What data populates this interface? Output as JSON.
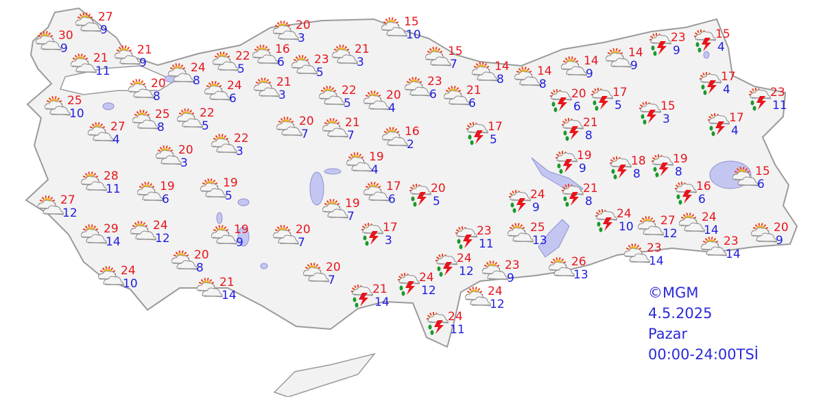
{
  "map": {
    "colors": {
      "land": "#f2f2f2",
      "border": "#9a9a9a",
      "water": "#c4c6f2",
      "max_temp": "#e8141b",
      "min_temp": "#1c1ce0",
      "info_text": "#2a2ad8"
    },
    "icon_types": {
      "s": "partly-cloudy-icon",
      "t": "thunderstorm-rain-icon"
    }
  },
  "info": {
    "credit": "©MGM",
    "date": "4.5.2025",
    "day": "Pazar",
    "period": "00:00-24:00TSİ"
  },
  "stations": [
    {
      "type": "s",
      "max": "30",
      "min": "9"
    },
    {
      "type": "s",
      "max": "27",
      "min": "9"
    },
    {
      "type": "s",
      "max": "21",
      "min": "11"
    },
    {
      "type": "s",
      "max": "21",
      "min": "9"
    },
    {
      "type": "s",
      "max": "20",
      "min": "8"
    },
    {
      "type": "s",
      "max": "24",
      "min": "8"
    },
    {
      "type": "s",
      "max": "25",
      "min": "10"
    },
    {
      "type": "s",
      "max": "27",
      "min": "4"
    },
    {
      "type": "s",
      "max": "25",
      "min": "8"
    },
    {
      "type": "s",
      "max": "22",
      "min": "5"
    },
    {
      "type": "s",
      "max": "22",
      "min": "5"
    },
    {
      "type": "s",
      "max": "16",
      "min": "6"
    },
    {
      "type": "s",
      "max": "20",
      "min": "3"
    },
    {
      "type": "s",
      "max": "24",
      "min": "6"
    },
    {
      "type": "s",
      "max": "21",
      "min": "3"
    },
    {
      "type": "s",
      "max": "23",
      "min": "5"
    },
    {
      "type": "s",
      "max": "21",
      "min": "3"
    },
    {
      "type": "s",
      "max": "15",
      "min": "10"
    },
    {
      "type": "s",
      "max": "15",
      "min": "7"
    },
    {
      "type": "s",
      "max": "14",
      "min": "8"
    },
    {
      "type": "s",
      "max": "14",
      "min": "8"
    },
    {
      "type": "s",
      "max": "14",
      "min": "9"
    },
    {
      "type": "s",
      "max": "14",
      "min": "9"
    },
    {
      "type": "t",
      "max": "23",
      "min": "9"
    },
    {
      "type": "t",
      "max": "15",
      "min": "4"
    },
    {
      "type": "t",
      "max": "17",
      "min": "4"
    },
    {
      "type": "t",
      "max": "23",
      "min": "11"
    },
    {
      "type": "t",
      "max": "17",
      "min": "4"
    },
    {
      "type": "t",
      "max": "15",
      "min": "3"
    },
    {
      "type": "t",
      "max": "17",
      "min": "5"
    },
    {
      "type": "t",
      "max": "20",
      "min": "6"
    },
    {
      "type": "t",
      "max": "21",
      "min": "8"
    },
    {
      "type": "t",
      "max": "19",
      "min": "9"
    },
    {
      "type": "t",
      "max": "18",
      "min": "8"
    },
    {
      "type": "t",
      "max": "19",
      "min": "8"
    },
    {
      "type": "s",
      "max": "15",
      "min": "6"
    },
    {
      "type": "t",
      "max": "16",
      "min": "6"
    },
    {
      "type": "t",
      "max": "21",
      "min": "8"
    },
    {
      "type": "t",
      "max": "24",
      "min": "9"
    },
    {
      "type": "t",
      "max": "24",
      "min": "10"
    },
    {
      "type": "s",
      "max": "27",
      "min": "12"
    },
    {
      "type": "s",
      "max": "24",
      "min": "14"
    },
    {
      "type": "s",
      "max": "20",
      "min": "9"
    },
    {
      "type": "s",
      "max": "23",
      "min": "14"
    },
    {
      "type": "s",
      "max": "23",
      "min": "14"
    },
    {
      "type": "s",
      "max": "25",
      "min": "13"
    },
    {
      "type": "s",
      "max": "26",
      "min": "13"
    },
    {
      "type": "s",
      "max": "23",
      "min": "9"
    },
    {
      "type": "s",
      "max": "24",
      "min": "12"
    },
    {
      "type": "t",
      "max": "24",
      "min": "12"
    },
    {
      "type": "t",
      "max": "23",
      "min": "11"
    },
    {
      "type": "t",
      "max": "24",
      "min": "12"
    },
    {
      "type": "t",
      "max": "21",
      "min": "14"
    },
    {
      "type": "t",
      "max": "24",
      "min": "11"
    },
    {
      "type": "t",
      "max": "17",
      "min": "3"
    },
    {
      "type": "t",
      "max": "20",
      "min": "5"
    },
    {
      "type": "s",
      "max": "17",
      "min": "6"
    },
    {
      "type": "s",
      "max": "19",
      "min": "7"
    },
    {
      "type": "s",
      "max": "19",
      "min": "4"
    },
    {
      "type": "s",
      "max": "16",
      "min": "2"
    },
    {
      "type": "s",
      "max": "21",
      "min": "7"
    },
    {
      "type": "s",
      "max": "20",
      "min": "7"
    },
    {
      "type": "s",
      "max": "20",
      "min": "4"
    },
    {
      "type": "s",
      "max": "22",
      "min": "5"
    },
    {
      "type": "s",
      "max": "23",
      "min": "6"
    },
    {
      "type": "s",
      "max": "21",
      "min": "6"
    },
    {
      "type": "t",
      "max": "17",
      "min": "5"
    },
    {
      "type": "s",
      "max": "22",
      "min": "3"
    },
    {
      "type": "s",
      "max": "20",
      "min": "3"
    },
    {
      "type": "s",
      "max": "28",
      "min": "11"
    },
    {
      "type": "s",
      "max": "19",
      "min": "6"
    },
    {
      "type": "s",
      "max": "19",
      "min": "5"
    },
    {
      "type": "s",
      "max": "27",
      "min": "12"
    },
    {
      "type": "s",
      "max": "29",
      "min": "14"
    },
    {
      "type": "s",
      "max": "24",
      "min": "12"
    },
    {
      "type": "s",
      "max": "20",
      "min": "8"
    },
    {
      "type": "s",
      "max": "19",
      "min": "9"
    },
    {
      "type": "s",
      "max": "20",
      "min": "7"
    },
    {
      "type": "s",
      "max": "20",
      "min": "7"
    },
    {
      "type": "s",
      "max": "24",
      "min": "10"
    },
    {
      "type": "s",
      "max": "21",
      "min": "14"
    }
  ]
}
